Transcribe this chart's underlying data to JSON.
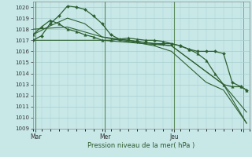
{
  "xlabel": "Pression niveau de la mer( hPa )",
  "bg_color": "#c8e8e8",
  "grid_color_h": "#b0d8d8",
  "grid_color_v": "#c0d8c0",
  "line_color": "#2d6030",
  "ylim": [
    1009.3,
    1020.5
  ],
  "yticks": [
    1010,
    1011,
    1012,
    1013,
    1014,
    1015,
    1016,
    1017,
    1018,
    1019,
    1020
  ],
  "xlim": [
    0,
    75
  ],
  "day_ticks": [
    1,
    25,
    49,
    73
  ],
  "day_labels": [
    "Mar",
    "Mer",
    "Jeu",
    ""
  ],
  "lines": [
    {
      "x": [
        0,
        3,
        6,
        9,
        12,
        15,
        18,
        21,
        24,
        27,
        30,
        33,
        36,
        39,
        42,
        45,
        48,
        51,
        54,
        57,
        60,
        63,
        66,
        69,
        72,
        74
      ],
      "y": [
        1017.0,
        1017.4,
        1018.5,
        1019.2,
        1020.1,
        1020.0,
        1019.8,
        1019.2,
        1018.5,
        1017.5,
        1017.1,
        1017.0,
        1016.9,
        1016.8,
        1016.7,
        1016.7,
        1016.7,
        1016.5,
        1016.2,
        1016.0,
        1016.0,
        1016.0,
        1015.8,
        1013.2,
        1012.8,
        1012.5
      ],
      "marker": "D",
      "ms": 2.0,
      "lw": 0.9
    },
    {
      "x": [
        0,
        3,
        6,
        9,
        12,
        15,
        18,
        21,
        24,
        27,
        30,
        33,
        36,
        39,
        42,
        45,
        48,
        51,
        54,
        57,
        60,
        63,
        66,
        69,
        72,
        74
      ],
      "y": [
        1017.5,
        1018.2,
        1018.8,
        1018.5,
        1018.0,
        1017.8,
        1017.5,
        1017.3,
        1017.0,
        1017.0,
        1017.1,
        1017.2,
        1017.1,
        1017.0,
        1017.0,
        1016.9,
        1016.7,
        1016.5,
        1016.2,
        1015.8,
        1015.2,
        1014.0,
        1013.0,
        1012.8,
        1012.8,
        1012.5
      ],
      "marker": "^",
      "ms": 2.5,
      "lw": 0.9
    },
    {
      "x": [
        0,
        24,
        48,
        66,
        74
      ],
      "y": [
        1017.0,
        1017.0,
        1016.5,
        1013.0,
        1009.5
      ],
      "marker": null,
      "ms": 0,
      "lw": 0.8
    },
    {
      "x": [
        0,
        12,
        24,
        48,
        66,
        74
      ],
      "y": [
        1018.0,
        1018.2,
        1017.3,
        1016.5,
        1013.0,
        1010.5
      ],
      "marker": null,
      "ms": 0,
      "lw": 0.8
    },
    {
      "x": [
        0,
        6,
        12,
        18,
        24,
        30,
        36,
        42,
        48,
        60,
        66,
        74
      ],
      "y": [
        1017.5,
        1018.3,
        1019.0,
        1018.5,
        1017.3,
        1017.0,
        1016.8,
        1016.5,
        1016.0,
        1013.2,
        1012.5,
        1009.5
      ],
      "marker": null,
      "ms": 0,
      "lw": 0.8
    }
  ]
}
